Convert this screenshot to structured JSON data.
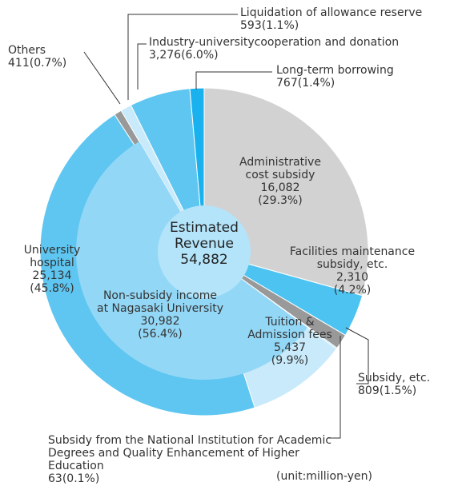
{
  "chart_data": {
    "type": "pie",
    "center_label": "Estimated Revenue",
    "total": 54882,
    "total_label": "54,882",
    "categories": [
      "Administrative cost subsidy",
      "Facilities maintenance subsidy, etc.",
      "Subsidy, etc.",
      "Subsidy from the National Institution for Academic Degrees and Quality Enhancement of Higher Education",
      "Tuition & Admission fees",
      "University hospital",
      "Others",
      "Liquidation of allowance reserve",
      "Industry-universitycooperation and donation",
      "Long-term borrowing"
    ],
    "values": [
      16082,
      2310,
      809,
      63,
      5437,
      25134,
      411,
      593,
      3276,
      767
    ],
    "value_labels": [
      "16,082",
      "2,310",
      "809",
      "63",
      "5,437",
      "25,134",
      "411",
      "593",
      "3,276",
      "767"
    ],
    "percent_labels": [
      "(29.3%)",
      "(4.2%)",
      "(1.5%)",
      "(0.1%)",
      "(9.9%)",
      "(45.8%)",
      "(0.7%)",
      "(1.1%)",
      "(6.0%)",
      "(1.4%)"
    ],
    "colors": [
      "#d2d2d2",
      "#4cc3f1",
      "#999999",
      "#4cc3f1",
      "#c8eafa",
      "#5ec6f1",
      "#999999",
      "#c8eafa",
      "#5ec6f1",
      "#19b2ee"
    ],
    "inner_segment": {
      "name": "Non-subsidy income at Nagasaki University",
      "value": 30982,
      "value_label": "30,982",
      "percent_label": "(56.4%)",
      "color": "#93d7f6"
    },
    "unit_note": "(unit:million-yen)"
  }
}
